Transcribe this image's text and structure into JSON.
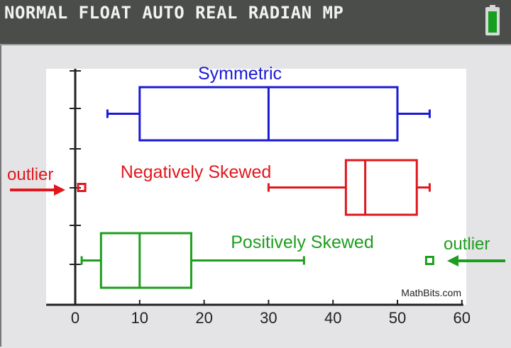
{
  "status_bar": {
    "text": "NORMAL FLOAT AUTO REAL RADIAN MP",
    "battery_icon": "battery-full-icon",
    "battery_color": "#14a01e"
  },
  "chart_data": {
    "type": "boxplot",
    "xlim": [
      -4.5,
      60
    ],
    "xticks": [
      0,
      10,
      20,
      30,
      40,
      50,
      60
    ],
    "xtick_labels": [
      "0",
      "10",
      "20",
      "30",
      "40",
      "50",
      "60"
    ],
    "grid": false,
    "series": [
      {
        "name": "Symmetric",
        "color": "#1a1ad6",
        "min": 5,
        "q1": 10,
        "median": 30,
        "q3": 50,
        "max": 55,
        "outliers": []
      },
      {
        "name": "Negatively Skewed",
        "color": "#e0181e",
        "min": 30,
        "q1": 42,
        "median": 45,
        "q3": 53,
        "max": 55,
        "outliers": [
          1
        ]
      },
      {
        "name": "Positively Skewed",
        "color": "#1e9e1e",
        "min": 1,
        "q1": 4,
        "median": 10,
        "q3": 18,
        "max": 35.5,
        "outliers": [
          55
        ]
      }
    ],
    "annotations": [
      {
        "text": "outlier",
        "color": "#e0181e",
        "points_to": "Negatively Skewed outlier"
      },
      {
        "text": "outlier",
        "color": "#1e9e1e",
        "points_to": "Positively Skewed outlier"
      }
    ],
    "watermark": "MathBits.com"
  }
}
